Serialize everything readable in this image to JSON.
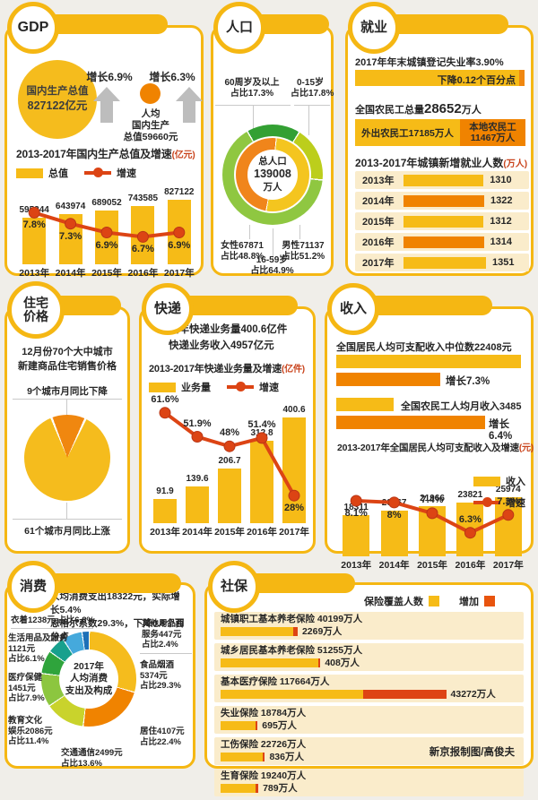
{
  "credit": "新京报制图/高俊夫",
  "panels": {
    "gdp": {
      "header": "GDP",
      "total_circle": {
        "l1": "国内生产总值",
        "l2": "827122亿元"
      },
      "growth_total": "增长6.9%",
      "percap": {
        "l1": "人均",
        "l2": "国内生产",
        "l3": "总值59660元"
      },
      "growth_percap": "增长6.3%"
    },
    "population": {
      "header": "人口",
      "labels": {
        "age60": {
          "l1": "60周岁及以上",
          "l2": "占比17.3%"
        },
        "age015": {
          "l1": "0-15岁",
          "l2": "占比17.8%"
        },
        "female": {
          "l1": "女性67871",
          "l2": "占比48.8%"
        },
        "male": {
          "l1": "男性71137",
          "l2": "占比51.2%"
        },
        "age1659": {
          "l1": "16-59岁",
          "l2": "占比64.9%"
        }
      }
    },
    "employment": {
      "header": "就业",
      "unemployment_label": "2017年年末城镇登记失业率3.90%",
      "unemployment_bar": "下降0.12个百分点",
      "migrant_prefix": "全国农民工总量",
      "migrant_value": "28652",
      "migrant_suffix": "万人",
      "migrant_out": "外出农民工17185万人",
      "migrant_local_l1": "本地农民工",
      "migrant_local_l2": "11467万人"
    },
    "housing": {
      "header_l1": "住宅",
      "header_l2": "价格",
      "intro_l1": "12月份70个大中城市",
      "intro_l2": "新建商品住宅销售价格",
      "down_label": "9个城市月同比下降",
      "up_label": "61个城市月同比上涨"
    },
    "express": {
      "header": "快递",
      "intro_l1": "全年快递业务量400.6亿件",
      "intro_l2": "快递业务收入4957亿元"
    },
    "income": {
      "header": "收入",
      "median_label": "全国居民人均可支配收入中位数22408元",
      "median_growth": "增长7.3%",
      "migrant_label": "全国农民工人均月收入3485元",
      "migrant_growth": "增长6.4%"
    },
    "consumption": {
      "header": "消费",
      "intro_l1": "人均消费支出18322元，实际增长5.4%",
      "intro_l2": "恩格尔系数29.3%，下降0.8个百分点"
    },
    "social": {
      "header": "社保",
      "legend_covered": "保险覆盖人数",
      "legend_increase": "增加"
    }
  },
  "chart_data": [
    {
      "id": "gdp",
      "type": "bar+line",
      "title": "2013-2017年国内生产总值及增速",
      "unit": "(亿元)",
      "legend": [
        "总值",
        "增速"
      ],
      "legend_position": "top",
      "categories": [
        "2013年",
        "2014年",
        "2015年",
        "2016年",
        "2017年"
      ],
      "bar_values": [
        595244,
        643974,
        689052,
        743585,
        827122
      ],
      "bar_labels": [
        "595244",
        "643974",
        "689052",
        "743585",
        "827122"
      ],
      "line_values": [
        7.8,
        7.3,
        6.9,
        6.7,
        6.9
      ],
      "line_labels": [
        "7.8%",
        "7.3%",
        "6.9%",
        "6.7%",
        "6.9%"
      ],
      "label_pos": [
        "below",
        "below",
        "below",
        "below",
        "below"
      ],
      "line_band": [
        0.36,
        0.66
      ],
      "ylim": [
        0,
        900000
      ],
      "bar_color": "#F6BB17",
      "line_color": "#DC4414"
    },
    {
      "id": "express",
      "type": "bar+line",
      "title": "2013-2017年快递业务量及增速",
      "unit": "(亿件)",
      "legend": [
        "业务量",
        "增速"
      ],
      "legend_position": "top",
      "categories": [
        "2013年",
        "2014年",
        "2015年",
        "2016年",
        "2017年"
      ],
      "bar_values": [
        91.9,
        139.6,
        206.7,
        312.8,
        400.6
      ],
      "bar_labels": [
        "91.9",
        "139.6",
        "206.7",
        "312.8",
        "400.6"
      ],
      "line_values": [
        61.6,
        51.9,
        48,
        51.4,
        28
      ],
      "line_labels": [
        "61.6%",
        "51.9%",
        "48%",
        "51.4%",
        "28%"
      ],
      "label_pos": [
        "above",
        "above",
        "above",
        "above",
        "below"
      ],
      "line_band": [
        0.12,
        0.78
      ],
      "ylim": [
        0,
        440
      ],
      "bar_color": "#F6BB17",
      "line_color": "#DC4414"
    },
    {
      "id": "income",
      "type": "bar+line",
      "title": "2013-2017年全国居民人均可支配收入及增速",
      "unit": "(元)",
      "legend": [
        "收入",
        "增速"
      ],
      "legend_position": "right",
      "categories": [
        "2013年",
        "2014年",
        "2015年",
        "2016年",
        "2017年"
      ],
      "bar_values": [
        18311,
        20167,
        21966,
        23821,
        25974
      ],
      "bar_labels": [
        "18311",
        "20167",
        "21966",
        "23821",
        "25974"
      ],
      "line_values": [
        8.1,
        8,
        7.4,
        6.3,
        7.3
      ],
      "line_labels": [
        "8.1%",
        "8%",
        "7.4%",
        "6.3%",
        "7.3%"
      ],
      "label_pos": [
        "below",
        "below",
        "above",
        "above",
        "above"
      ],
      "line_band": [
        0.34,
        0.72
      ],
      "ylim": [
        0,
        28000
      ],
      "bar_color": "#F6BB17",
      "line_color": "#DC4414"
    },
    {
      "id": "jobs",
      "type": "bar",
      "title": "2013-2017年城镇新增就业人数",
      "unit": "(万人)",
      "categories": [
        "2013年",
        "2014年",
        "2015年",
        "2016年",
        "2017年"
      ],
      "values": [
        1310,
        1322,
        1312,
        1314,
        1351
      ],
      "bar_colors": [
        "#F6BB17",
        "#F08300",
        "#F6BB17",
        "#F08300",
        "#F6BB17"
      ]
    },
    {
      "id": "social",
      "type": "stacked-bar",
      "rows": [
        {
          "label": "城镇职工基本养老保险 40199万人",
          "total": 40199,
          "increase": 2269,
          "increase_label": "2269万人"
        },
        {
          "label": "城乡居民基本养老保险 51255万人",
          "total": 51255,
          "increase": 408,
          "increase_label": "408万人"
        },
        {
          "label": "基本医疗保险 117664万人",
          "total": 117664,
          "increase": 43272,
          "increase_label": "43272万人"
        },
        {
          "label": "失业保险 18784万人",
          "total": 18784,
          "increase": 695,
          "increase_label": "695万人"
        },
        {
          "label": "工伤保险 22726万人",
          "total": 22726,
          "increase": 836,
          "increase_label": "836万人"
        },
        {
          "label": "生育保险 19240万人",
          "total": 19240,
          "increase": 789,
          "increase_label": "789万人"
        }
      ],
      "covered_color": "#F6BB17",
      "increase_color": "#DE4414",
      "legend_increase_color": "#E8540E"
    },
    {
      "id": "population",
      "type": "donut",
      "outer_start_deg": -31,
      "inner_start_deg": 5,
      "outer": [
        {
          "label": "60周岁及以上",
          "pct": 17.3,
          "color": "#33A033"
        },
        {
          "label": "0-15岁",
          "pct": 17.8,
          "color": "#BCCE1C"
        },
        {
          "label": "16-59岁",
          "pct": 64.9,
          "color": "#8FC741"
        }
      ],
      "inner": [
        {
          "label": "男性",
          "value": 71137,
          "pct": 51.2,
          "color": "#F4C51F"
        },
        {
          "label": "女性",
          "value": 67871,
          "pct": 48.8,
          "color": "#F0851B"
        }
      ],
      "center": [
        "总人口",
        "139008",
        "万人"
      ]
    },
    {
      "id": "housing",
      "type": "pie",
      "start_deg": -23,
      "slices": [
        {
          "label": "9个城市月同比下降",
          "pct": 12.9,
          "color": "#F0870F"
        },
        {
          "label": "61个城市月同比上涨",
          "pct": 87.1,
          "color": "#F5BC1D"
        }
      ]
    },
    {
      "id": "consumption",
      "type": "donut",
      "start_deg": 0,
      "center": [
        "2017年",
        "人均消费",
        "支出及构成"
      ],
      "slices": [
        {
          "label": "食品烟酒",
          "pct": 29.3,
          "color": "#F5BC1D",
          "lines": [
            "食品烟酒",
            "5374元",
            "占比29.3%"
          ]
        },
        {
          "label": "居住",
          "pct": 22.4,
          "color": "#F08300",
          "lines": [
            "居住4107元",
            "占比22.4%"
          ]
        },
        {
          "label": "交通通信",
          "pct": 13.6,
          "color": "#C9D32C",
          "lines": [
            "交通通信2499元",
            "占比13.6%"
          ]
        },
        {
          "label": "教育文化娱乐",
          "pct": 11.4,
          "color": "#8CC63F",
          "lines": [
            "教育文化",
            "娱乐2086元",
            "占比11.4%"
          ]
        },
        {
          "label": "医疗保健",
          "pct": 7.9,
          "color": "#2FA43C",
          "lines": [
            "医疗保健",
            "1451元",
            "占比7.9%"
          ]
        },
        {
          "label": "生活用品及服务",
          "pct": 6.1,
          "color": "#18A08D",
          "lines": [
            "生活用品及服务",
            "1121元",
            "占比6.1%"
          ]
        },
        {
          "label": "衣着",
          "pct": 6.8,
          "color": "#45A9DC",
          "lines": [
            "衣着1238元  占比6.8%"
          ]
        },
        {
          "label": "其他用品和服务",
          "pct": 2.4,
          "color": "#1D70B7",
          "lines": [
            "其他用品和",
            "服务447元",
            "占比2.4%"
          ]
        }
      ]
    }
  ]
}
